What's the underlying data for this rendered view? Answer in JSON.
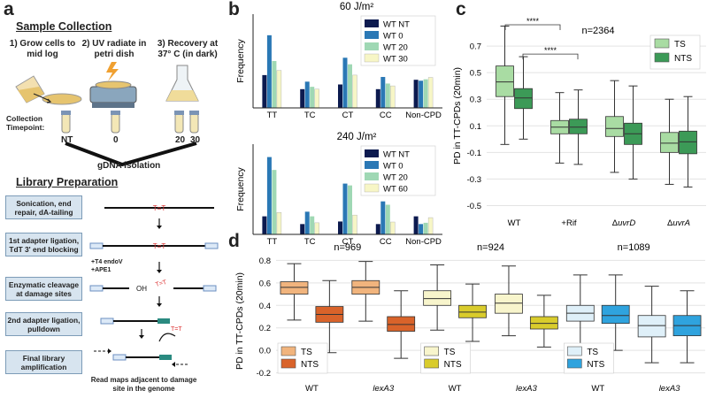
{
  "panel_a": {
    "letter": "a",
    "sample_collection": {
      "header": "Sample Collection",
      "steps": [
        "1) Grow cells to",
        "mid log",
        "2) UV radiate in",
        "petri dish",
        "3) Recovery at",
        "37° C (in dark)"
      ],
      "timepoint_label": [
        "Collection",
        "Timepoint:"
      ],
      "timepoints": [
        "NT",
        "0",
        "20",
        "30"
      ],
      "gdna": "gDNA isolation"
    },
    "library_prep": {
      "header": "Library Preparation",
      "boxes": [
        [
          "Sonication, end",
          "repair, dA-tailing"
        ],
        [
          "1st adapter ligation,",
          "TdT 3' end blocking"
        ],
        [
          "Enzymatic cleavage",
          "at damage sites"
        ],
        [
          "2nd adapter ligation,",
          "pulldown"
        ],
        [
          "Final library",
          "amplification"
        ]
      ],
      "enzymes": [
        "+T4 endoV",
        "+APE1"
      ],
      "dimer": "T=T",
      "oh": "OH",
      "footer": [
        "Read maps adjacent to damage",
        "site in the genome"
      ]
    }
  },
  "panel_b": {
    "letter": "b",
    "colors": [
      "#0c1a4f",
      "#2a78b5",
      "#9fd8b4",
      "#f7f6c6"
    ],
    "chart_data": [
      {
        "type": "bar",
        "title": "60 J/m²",
        "ylabel": "Frequency",
        "categories": [
          "TT",
          "TC",
          "CT",
          "CC",
          "Non-CPD"
        ],
        "ylim": [
          0,
          0.2
        ],
        "series": [
          {
            "name": "WT NT",
            "values": [
              0.07,
              0.04,
              0.05,
              0.04,
              0.06
            ]
          },
          {
            "name": "WT 0",
            "values": [
              0.155,
              0.056,
              0.107,
              0.066,
              0.058
            ]
          },
          {
            "name": "WT 20",
            "values": [
              0.1,
              0.045,
              0.093,
              0.052,
              0.061
            ]
          },
          {
            "name": "WT 30",
            "values": [
              0.08,
              0.04,
              0.07,
              0.047,
              0.065
            ]
          }
        ]
      },
      {
        "type": "bar",
        "title": "240 J/m²",
        "ylabel": "Frequency",
        "categories": [
          "TT",
          "TC",
          "CT",
          "CC",
          "Non-CPD"
        ],
        "ylim": [
          0,
          0.35
        ],
        "series": [
          {
            "name": "WT NT",
            "values": [
              0.07,
              0.04,
              0.05,
              0.04,
              0.07
            ]
          },
          {
            "name": "WT 0",
            "values": [
              0.3,
              0.088,
              0.197,
              0.128,
              0.04
            ]
          },
          {
            "name": "WT 20",
            "values": [
              0.25,
              0.07,
              0.19,
              0.115,
              0.045
            ]
          },
          {
            "name": "WT 60",
            "values": [
              0.085,
              0.045,
              0.075,
              0.048,
              0.065
            ]
          }
        ]
      }
    ]
  },
  "panel_c": {
    "letter": "c",
    "annotation": "n=2364",
    "sig": [
      "****",
      "****"
    ],
    "legend": [
      "TS",
      "NTS"
    ],
    "colors": [
      "#a9dca3",
      "#3c9a57"
    ],
    "chart_data": {
      "type": "box",
      "ylabel": "PD in TT-CPDs (20min)",
      "ylim": [
        -0.55,
        0.9
      ],
      "yticks": [
        -0.5,
        -0.3,
        -0.1,
        0.1,
        0.3,
        0.5,
        0.7
      ],
      "groups": [
        {
          "label": "WT",
          "boxes": [
            {
              "name": "TS",
              "whislo": -0.04,
              "q1": 0.32,
              "med": 0.43,
              "q3": 0.55,
              "whishi": 0.85
            },
            {
              "name": "NTS",
              "whislo": 0.0,
              "q1": 0.23,
              "med": 0.31,
              "q3": 0.38,
              "whishi": 0.62
            }
          ]
        },
        {
          "label": "+Rif",
          "boxes": [
            {
              "name": "TS",
              "whislo": -0.18,
              "q1": 0.04,
              "med": 0.09,
              "q3": 0.14,
              "whishi": 0.35
            },
            {
              "name": "NTS",
              "whislo": -0.19,
              "q1": 0.04,
              "med": 0.09,
              "q3": 0.15,
              "whishi": 0.37
            }
          ]
        },
        {
          "label": "ΔuvrD",
          "italic": "uvrD",
          "boxes": [
            {
              "name": "TS",
              "whislo": -0.25,
              "q1": 0.02,
              "med": 0.08,
              "q3": 0.17,
              "whishi": 0.44
            },
            {
              "name": "NTS",
              "whislo": -0.3,
              "q1": -0.04,
              "med": 0.04,
              "q3": 0.12,
              "whishi": 0.4
            }
          ]
        },
        {
          "label": "ΔuvrA",
          "italic": "uvrA",
          "boxes": [
            {
              "name": "TS",
              "whislo": -0.34,
              "q1": -0.1,
              "med": -0.03,
              "q3": 0.05,
              "whishi": 0.3
            },
            {
              "name": "NTS",
              "whislo": -0.36,
              "q1": -0.11,
              "med": -0.02,
              "q3": 0.06,
              "whishi": 0.32
            }
          ]
        }
      ]
    }
  },
  "panel_d": {
    "letter": "d",
    "annotations": [
      "n=969",
      "n=924",
      "n=1089"
    ],
    "legend_labels": [
      "TS",
      "NTS"
    ],
    "chart_data": {
      "type": "box",
      "ylabel": "PD in TT-CPDs (20min)",
      "ylim": [
        -0.25,
        0.85
      ],
      "yticks": [
        -0.2,
        0.0,
        0.2,
        0.4,
        0.6,
        0.8
      ],
      "groups": [
        {
          "label": "WT",
          "italic": false,
          "colors": [
            "#f1b47d",
            "#d9632a"
          ],
          "boxes": [
            {
              "name": "TS",
              "whislo": 0.27,
              "q1": 0.5,
              "med": 0.56,
              "q3": 0.61,
              "whishi": 0.77
            },
            {
              "name": "NTS",
              "whislo": -0.02,
              "q1": 0.25,
              "med": 0.32,
              "q3": 0.39,
              "whishi": 0.62
            }
          ]
        },
        {
          "label": "lexA3",
          "italic": true,
          "colors": [
            "#f1b47d",
            "#d9632a"
          ],
          "boxes": [
            {
              "name": "TS",
              "whislo": 0.26,
              "q1": 0.5,
              "med": 0.56,
              "q3": 0.62,
              "whishi": 0.79
            },
            {
              "name": "NTS",
              "whislo": -0.07,
              "q1": 0.17,
              "med": 0.23,
              "q3": 0.3,
              "whishi": 0.53
            }
          ]
        },
        {
          "label": "WT",
          "italic": false,
          "colors": [
            "#f8f5cc",
            "#d9cc2c"
          ],
          "boxes": [
            {
              "name": "TS",
              "whislo": 0.18,
              "q1": 0.4,
              "med": 0.46,
              "q3": 0.53,
              "whishi": 0.76
            },
            {
              "name": "NTS",
              "whislo": 0.08,
              "q1": 0.29,
              "med": 0.34,
              "q3": 0.4,
              "whishi": 0.59
            }
          ]
        },
        {
          "label": "lexA3",
          "italic": true,
          "colors": [
            "#f8f5cc",
            "#d9cc2c"
          ],
          "boxes": [
            {
              "name": "TS",
              "whislo": 0.13,
              "q1": 0.33,
              "med": 0.42,
              "q3": 0.5,
              "whishi": 0.75
            },
            {
              "name": "NTS",
              "whislo": 0.03,
              "q1": 0.19,
              "med": 0.24,
              "q3": 0.3,
              "whishi": 0.49
            }
          ]
        },
        {
          "label": "WT",
          "italic": false,
          "colors": [
            "#dff0f9",
            "#2fa3de"
          ],
          "boxes": [
            {
              "name": "TS",
              "whislo": 0.03,
              "q1": 0.26,
              "med": 0.33,
              "q3": 0.4,
              "whishi": 0.67
            },
            {
              "name": "NTS",
              "whislo": 0.0,
              "q1": 0.24,
              "med": 0.31,
              "q3": 0.4,
              "whishi": 0.67
            }
          ]
        },
        {
          "label": "lexA3",
          "italic": true,
          "colors": [
            "#dff0f9",
            "#2fa3de"
          ],
          "boxes": [
            {
              "name": "TS",
              "whislo": -0.11,
              "q1": 0.12,
              "med": 0.22,
              "q3": 0.31,
              "whishi": 0.57
            },
            {
              "name": "NTS",
              "whislo": -0.11,
              "q1": 0.13,
              "med": 0.22,
              "q3": 0.31,
              "whishi": 0.53
            }
          ]
        }
      ]
    }
  }
}
